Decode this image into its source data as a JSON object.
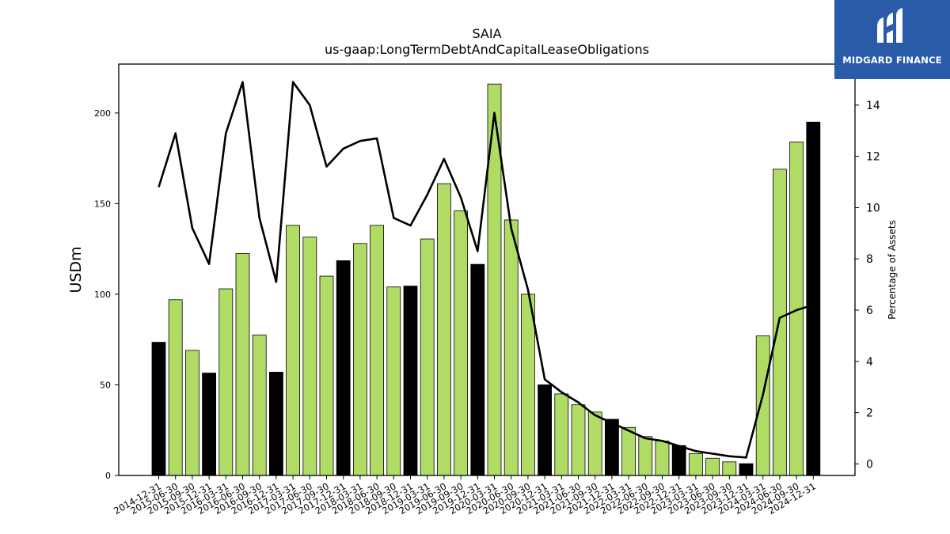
{
  "logo": {
    "text": "MIDGARD FINANCE",
    "icon": "midgard-m-logo-icon",
    "background": "#2a5ba8"
  },
  "chart_data": {
    "type": "bar",
    "title": "SAIA",
    "subtitle": "us-gaap:LongTermDebtAndCapitalLeaseObligations",
    "ylabel": "USDm",
    "y2label": "Percentage of Assets",
    "ylim": [
      0,
      227
    ],
    "y2lim": [
      -0.45,
      15.6
    ],
    "yticks": [
      0,
      50,
      100,
      150,
      200
    ],
    "y2ticks": [
      0,
      2,
      4,
      6,
      8,
      10,
      12,
      14
    ],
    "grid": false,
    "categories": [
      "2014-12-31",
      "2015-06-30",
      "2015-09-30",
      "2015-12-31",
      "2016-03-31",
      "2016-06-30",
      "2016-09-30",
      "2016-12-31",
      "2017-03-31",
      "2017-06-30",
      "2017-09-30",
      "2017-12-31",
      "2018-03-31",
      "2018-06-30",
      "2018-09-30",
      "2018-12-31",
      "2019-03-31",
      "2019-06-30",
      "2019-09-30",
      "2019-12-31",
      "2020-03-31",
      "2020-06-30",
      "2020-09-30",
      "2020-12-31",
      "2021-03-31",
      "2021-06-30",
      "2021-09-30",
      "2021-12-31",
      "2022-03-31",
      "2022-06-30",
      "2022-09-30",
      "2022-12-31",
      "2023-03-31",
      "2023-06-30",
      "2023-09-30",
      "2023-12-31",
      "2024-03-31",
      "2024-06-30",
      "2024-09-30",
      "2024-12-31"
    ],
    "series": [
      {
        "type": "bar",
        "values": [
          73.5,
          97,
          69,
          56.5,
          103,
          122.5,
          77.5,
          57,
          138,
          131.5,
          110,
          118.5,
          128,
          138,
          104,
          104.5,
          130.5,
          161,
          146,
          116.5,
          216,
          141,
          100,
          50,
          45,
          39,
          35,
          31,
          26.5,
          21.5,
          19,
          16.5,
          12,
          9.5,
          7.5,
          6.5,
          77,
          169,
          184,
          195
        ],
        "colors": [
          "#000000",
          "#b0dc66",
          "#b0dc66",
          "#000000",
          "#b0dc66",
          "#b0dc66",
          "#b0dc66",
          "#000000",
          "#b0dc66",
          "#b0dc66",
          "#b0dc66",
          "#000000",
          "#b0dc66",
          "#b0dc66",
          "#b0dc66",
          "#000000",
          "#b0dc66",
          "#b0dc66",
          "#b0dc66",
          "#000000",
          "#b0dc66",
          "#b0dc66",
          "#b0dc66",
          "#000000",
          "#b0dc66",
          "#b0dc66",
          "#b0dc66",
          "#000000",
          "#b0dc66",
          "#b0dc66",
          "#b0dc66",
          "#000000",
          "#b0dc66",
          "#b0dc66",
          "#b0dc66",
          "#000000",
          "#b0dc66",
          "#b0dc66",
          "#b0dc66",
          "#000000"
        ]
      },
      {
        "type": "line",
        "axis": "y2",
        "color": "#000000",
        "values": [
          10.8,
          12.9,
          9.2,
          7.8,
          12.9,
          14.9,
          9.6,
          7.1,
          14.9,
          14.0,
          11.6,
          12.3,
          12.6,
          12.7,
          9.6,
          9.3,
          10.5,
          11.9,
          10.4,
          8.3,
          13.7,
          9.2,
          6.8,
          3.3,
          2.8,
          2.4,
          1.9,
          1.6,
          1.3,
          1.0,
          0.9,
          0.7,
          0.5,
          0.4,
          0.3,
          0.25,
          2.7,
          5.7,
          6.0,
          6.2
        ]
      }
    ]
  }
}
